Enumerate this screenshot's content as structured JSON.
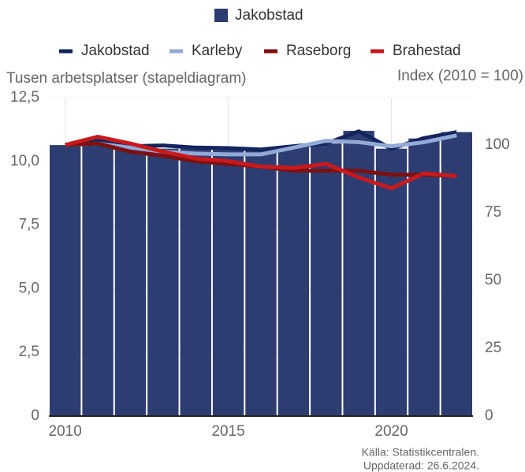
{
  "chart_data": {
    "type": "bar",
    "y_axis_title": "Tusen arbetsplatser (stapeldiagram)",
    "y2_axis_title": "Index (2010 = 100)",
    "source": [
      "Källa: Statistikcentralen.",
      "Uppdaterad: 26.6.2024."
    ],
    "x": [
      2010,
      2011,
      2012,
      2013,
      2014,
      2015,
      2016,
      2017,
      2018,
      2019,
      2020,
      2021,
      2022
    ],
    "xlim": [
      2009.5,
      2022.5
    ],
    "xticks": [
      2010,
      2015,
      2020
    ],
    "ylim": [
      0,
      12.5
    ],
    "yticks": [
      0,
      {
        "value": 2.5,
        "label": "2,5"
      },
      {
        "value": 5,
        "label": "5,0"
      },
      {
        "value": 7.5,
        "label": "7,5"
      },
      {
        "value": 10,
        "label": "10,0"
      },
      {
        "value": 12.5,
        "label": "12,5"
      }
    ],
    "y2lim": [
      0,
      117.4
    ],
    "y2ticks": [
      0,
      25,
      50,
      75,
      100
    ],
    "grid": true,
    "series": [
      {
        "name": "Jakobstad",
        "type": "bar",
        "axis": "y",
        "color": "#2d3d72",
        "values": [
          10.64,
          10.77,
          10.6,
          10.5,
          10.5,
          10.5,
          10.45,
          10.6,
          10.7,
          11.2,
          10.5,
          10.9,
          11.15
        ]
      },
      {
        "name": "Jakobstad",
        "type": "line",
        "axis": "y2",
        "color": "#13245e",
        "values": [
          100,
          101.5,
          99.5,
          99.8,
          99,
          98.8,
          98.3,
          99.5,
          100.5,
          105,
          98.6,
          102.5,
          104.7
        ]
      },
      {
        "name": "Karleby",
        "type": "line",
        "axis": "y2",
        "color": "#93a9d6",
        "values": [
          100,
          100.5,
          99,
          97.5,
          96.8,
          96.5,
          96.5,
          99,
          101.5,
          101,
          99.5,
          101,
          103.5
        ]
      },
      {
        "name": "Raseborg",
        "type": "line",
        "axis": "y2",
        "color": "#7d1010",
        "values": [
          100,
          100.5,
          97.5,
          96,
          94,
          93,
          92,
          90.5,
          90.5,
          90.5,
          89,
          89,
          88.5
        ]
      },
      {
        "name": "Brahestad",
        "type": "line",
        "axis": "y2",
        "color": "#c8191c",
        "values": [
          100,
          103,
          100.5,
          97.5,
          95,
          94,
          92,
          91.5,
          93,
          88,
          84,
          89.5,
          88.5
        ]
      }
    ]
  }
}
